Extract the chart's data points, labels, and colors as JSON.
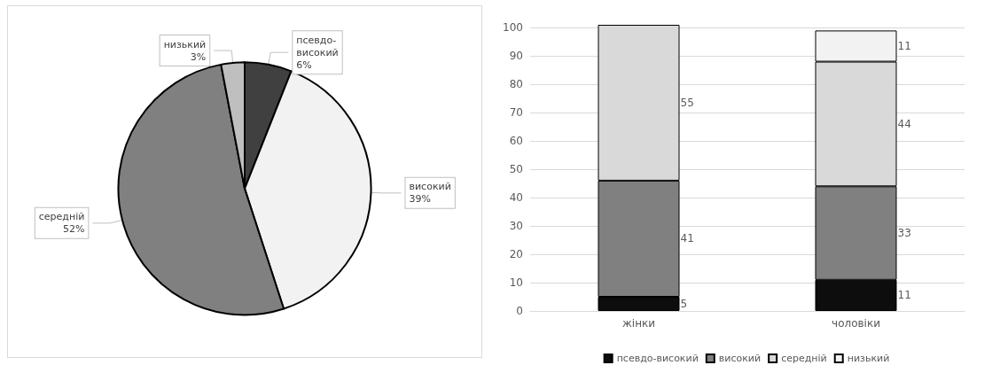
{
  "chart_data": [
    {
      "type": "pie",
      "categories": [
        "псевдо-високий",
        "високий",
        "середній",
        "низький"
      ],
      "values": [
        6,
        39,
        52,
        3
      ],
      "value_labels": [
        "6%",
        "39%",
        "52%",
        "3%"
      ],
      "colors": [
        "#404040",
        "#f2f2f2",
        "#808080",
        "#bfbfbf"
      ],
      "legend": false
    },
    {
      "type": "bar",
      "stacked": true,
      "categories": [
        "жінки",
        "чоловіки"
      ],
      "series": [
        {
          "name": "псевдо-високий",
          "color": "#0d0d0d",
          "values": [
            5,
            11
          ]
        },
        {
          "name": "високий",
          "color": "#808080",
          "values": [
            41,
            33
          ]
        },
        {
          "name": "середній",
          "color": "#d9d9d9",
          "values": [
            55,
            44
          ]
        },
        {
          "name": "низький",
          "color": "#f2f2f2",
          "values": [
            null,
            11
          ]
        }
      ],
      "ylim": [
        0,
        101
      ],
      "yticks": [
        0,
        10,
        20,
        30,
        40,
        50,
        60,
        70,
        80,
        90,
        100
      ],
      "grid": "y",
      "legend": "bottom",
      "data_labels": true
    }
  ]
}
